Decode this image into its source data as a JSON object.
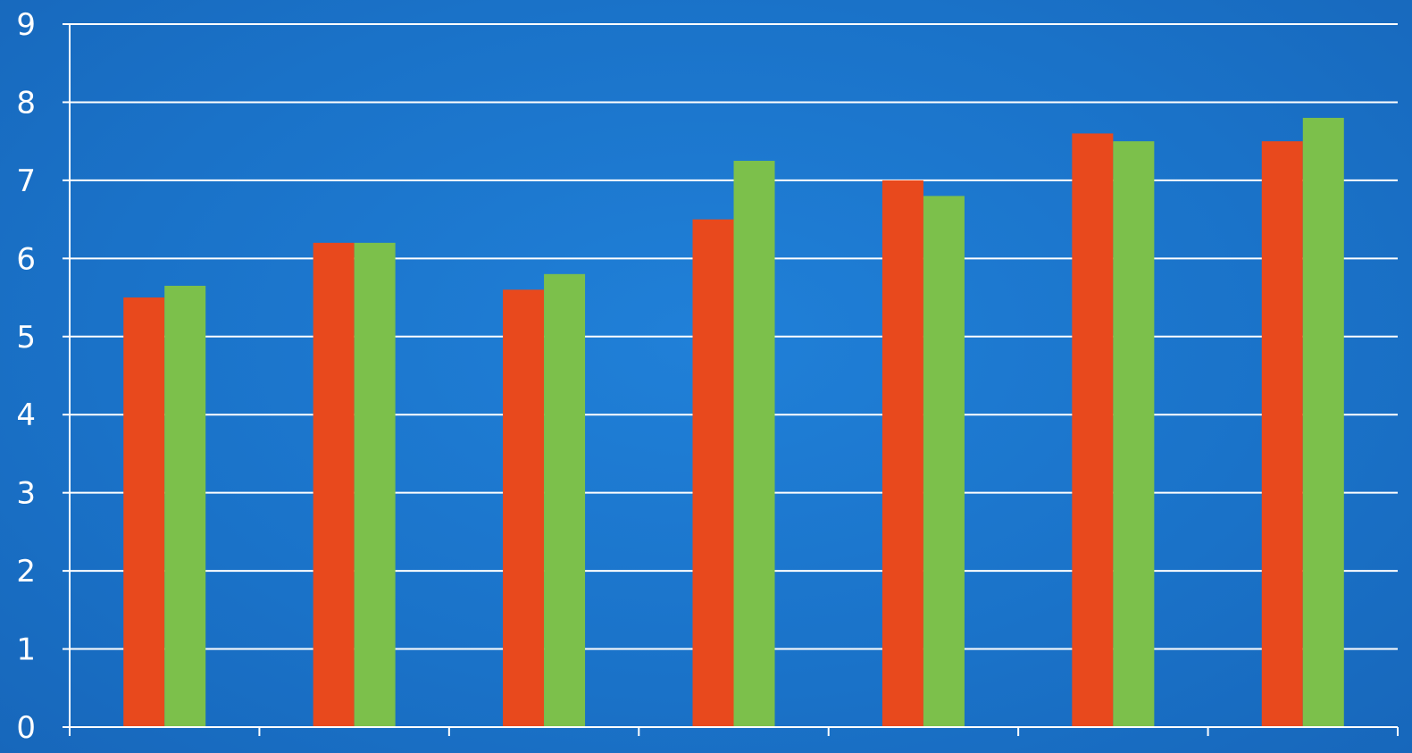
{
  "chart_data": {
    "type": "bar",
    "title": "",
    "xlabel": "",
    "ylabel": "",
    "categories": [
      "",
      "",
      "",
      "",
      "",
      "",
      ""
    ],
    "series": [
      {
        "color": "#e8491d",
        "values": [
          5.5,
          6.2,
          5.6,
          6.5,
          7.0,
          7.6,
          7.5
        ]
      },
      {
        "color": "#7cc04b",
        "values": [
          5.65,
          6.2,
          5.8,
          7.25,
          6.8,
          7.5,
          7.8
        ]
      }
    ],
    "ylim": [
      0,
      9
    ],
    "yticks": [
      "0",
      "1",
      "2",
      "3",
      "4",
      "5",
      "6",
      "7",
      "8",
      "9"
    ],
    "grid": true,
    "legend": "none",
    "colors": {
      "background": "#1a72c8",
      "gridline": "#ffffff",
      "axis": "#ffffff",
      "text": "#ffffff"
    }
  }
}
